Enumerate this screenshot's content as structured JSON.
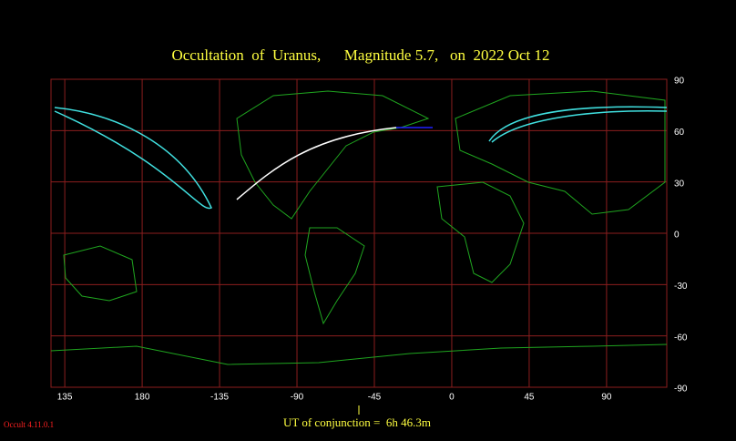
{
  "chart_data": {
    "type": "map",
    "title": "Occultation  of  Uranus,      Magnitude 5.7,   on  2022 Oct 12",
    "xlim": [
      127,
      125
    ],
    "xticks": [
      135,
      180,
      -135,
      -90,
      -45,
      0,
      45,
      90
    ],
    "ylim": [
      -90,
      90
    ],
    "yticks": [
      90,
      60,
      30,
      0,
      -30,
      -60,
      -90
    ],
    "grid": true,
    "grid_color": "#8b1e1e",
    "footer": "UT of conjunction =  6h 46.3m",
    "version": "Occult 4.11.0.1"
  }
}
